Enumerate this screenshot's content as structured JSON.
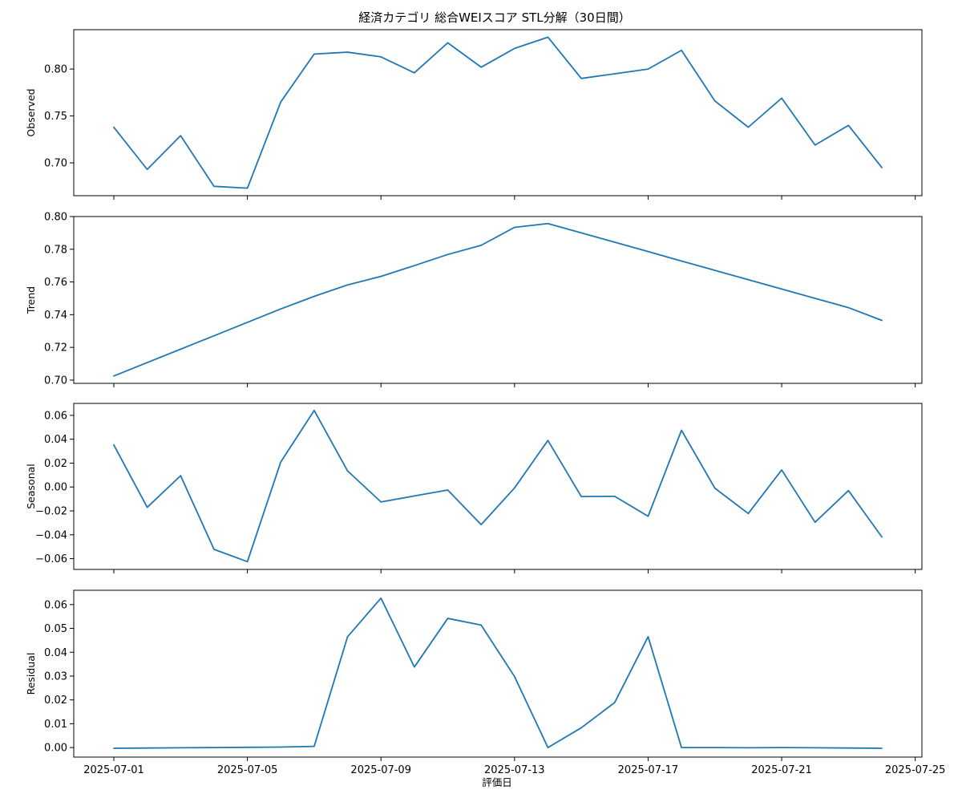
{
  "chart_data": {
    "type": "line",
    "title": "経済カテゴリ 総合WEIスコア STL分解（30日間）",
    "xlabel": "評価日",
    "x": [
      "2025-07-01",
      "2025-07-02",
      "2025-07-03",
      "2025-07-04",
      "2025-07-05",
      "2025-07-06",
      "2025-07-07",
      "2025-07-08",
      "2025-07-09",
      "2025-07-10",
      "2025-07-11",
      "2025-07-12",
      "2025-07-13",
      "2025-07-14",
      "2025-07-15",
      "2025-07-16",
      "2025-07-17",
      "2025-07-18",
      "2025-07-19",
      "2025-07-20",
      "2025-07-21",
      "2025-07-22",
      "2025-07-23",
      "2025-07-24"
    ],
    "xlim": [
      "2025-06-29.8",
      "2025-07-25.2"
    ],
    "x_ticks": [
      "2025-07-01",
      "2025-07-05",
      "2025-07-09",
      "2025-07-13",
      "2025-07-17",
      "2025-07-21",
      "2025-07-25"
    ],
    "grid": false,
    "panels": [
      {
        "ylabel": "Observed",
        "ylim": [
          0.665,
          0.842
        ],
        "y_ticks": [
          "0.70",
          "0.75",
          "0.80"
        ],
        "values": [
          0.738,
          0.693,
          0.729,
          0.675,
          0.673,
          0.765,
          0.816,
          0.818,
          0.813,
          0.796,
          0.828,
          0.802,
          0.822,
          0.834,
          0.79,
          0.795,
          0.8,
          0.82,
          0.766,
          0.738,
          0.769,
          0.719,
          0.74,
          0.695
        ]
      },
      {
        "ylabel": "Trend",
        "ylim": [
          0.698,
          0.8
        ],
        "y_ticks": [
          "0.70",
          "0.72",
          "0.74",
          "0.76",
          "0.78",
          "0.80"
        ],
        "values": [
          0.7025,
          0.7107,
          0.7189,
          0.7271,
          0.7353,
          0.7435,
          0.7512,
          0.7582,
          0.7634,
          0.77,
          0.7768,
          0.7824,
          0.7934,
          0.7957,
          0.79,
          0.7843,
          0.7786,
          0.7728,
          0.7671,
          0.7614,
          0.7557,
          0.75,
          0.7443,
          0.7365
        ]
      },
      {
        "ylabel": "Seasonal",
        "ylim": [
          -0.069,
          0.07
        ],
        "y_ticks": [
          "-0.06",
          "-0.04",
          "-0.02",
          "0.00",
          "0.02",
          "0.04",
          "0.06"
        ],
        "values": [
          0.0352,
          -0.017,
          0.0095,
          -0.0522,
          -0.0625,
          0.021,
          0.0641,
          0.0135,
          -0.0125,
          -0.0075,
          -0.0025,
          -0.0315,
          -0.0008,
          0.039,
          -0.008,
          -0.0078,
          -0.0245,
          0.0475,
          -0.001,
          -0.0222,
          0.0143,
          -0.0295,
          -0.003,
          -0.0418
        ]
      },
      {
        "ylabel": "Residual",
        "ylim": [
          -0.004,
          0.066
        ],
        "y_ticks": [
          "0.00",
          "0.01",
          "0.02",
          "0.03",
          "0.04",
          "0.05",
          "0.06"
        ],
        "values": [
          -0.0003,
          -0.0002,
          -0.0001,
          0.0,
          0.0001,
          0.0002,
          0.0005,
          0.0465,
          0.0627,
          0.0338,
          0.0542,
          0.0514,
          0.0298,
          0.0,
          0.0083,
          0.0189,
          0.0465,
          0.0,
          0.0,
          -0.0001,
          0.0,
          -0.0001,
          -0.0002,
          -0.0003
        ]
      }
    ]
  },
  "colors": {
    "line": "#1f77b4",
    "axes": "#000000"
  }
}
